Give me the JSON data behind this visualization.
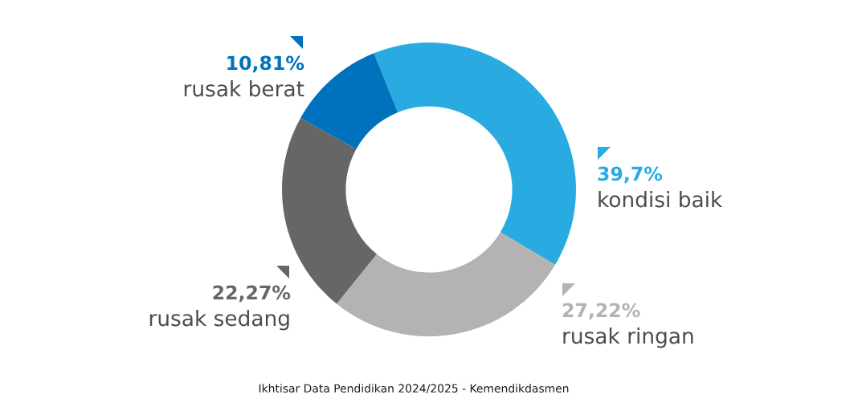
{
  "chart_data": {
    "type": "donut",
    "categories": [
      "kondisi baik",
      "rusak ringan",
      "rusak sedang",
      "rusak berat"
    ],
    "values": [
      39.7,
      27.22,
      22.27,
      10.81
    ],
    "colors": [
      "#29abe2",
      "#b3b3b3",
      "#666666",
      "#0071bc"
    ],
    "value_labels": [
      "39,7%",
      "27,22%",
      "22,27%",
      "10,81%"
    ],
    "annotations": [
      "Ikhtisar Data Pendidikan 2024/2025 - Kemendikdasmen"
    ]
  }
}
